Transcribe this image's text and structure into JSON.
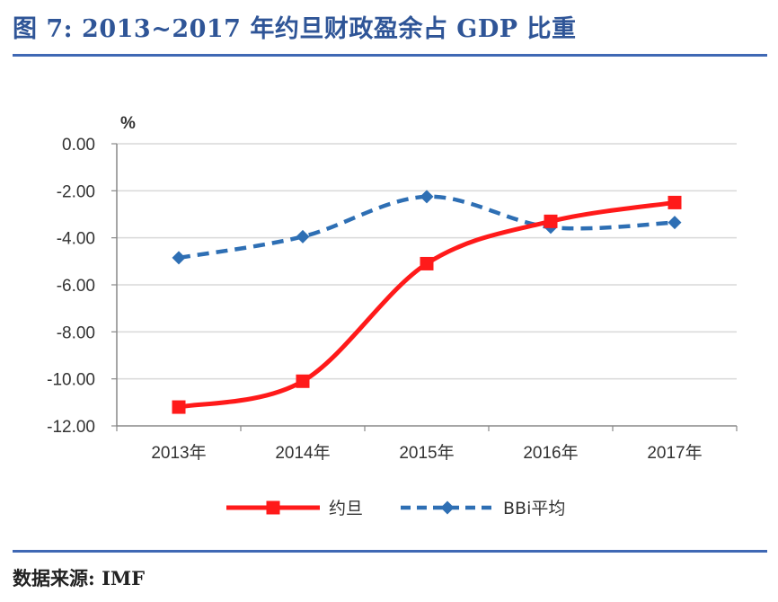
{
  "header": {
    "title": "图 7: 2013~2017 年约旦财政盈余占 GDP 比重"
  },
  "footer": {
    "source": "数据来源: IMF"
  },
  "chart_data": {
    "type": "line",
    "title": "",
    "xlabel": "",
    "ylabel": "%",
    "categories": [
      "2013年",
      "2014年",
      "2015年",
      "2016年",
      "2017年"
    ],
    "ylim": [
      -12,
      0
    ],
    "yticks": [
      0,
      -2,
      -4,
      -6,
      -8,
      -10,
      -12
    ],
    "ytick_labels": [
      "0.00",
      "-2.00",
      "-4.00",
      "-6.00",
      "-8.00",
      "-10.00",
      "-12.00"
    ],
    "grid": true,
    "legend_position": "bottom",
    "series": [
      {
        "name": "约旦",
        "values": [
          -11.2,
          -10.1,
          -5.1,
          -3.3,
          -2.5
        ],
        "color": "#ff1a1a",
        "style": "solid",
        "marker": "square"
      },
      {
        "name": "BBi平均",
        "values": [
          -4.85,
          -3.95,
          -2.25,
          -3.55,
          -3.35
        ],
        "color": "#2e6fb4",
        "style": "dashed",
        "marker": "diamond"
      }
    ]
  }
}
